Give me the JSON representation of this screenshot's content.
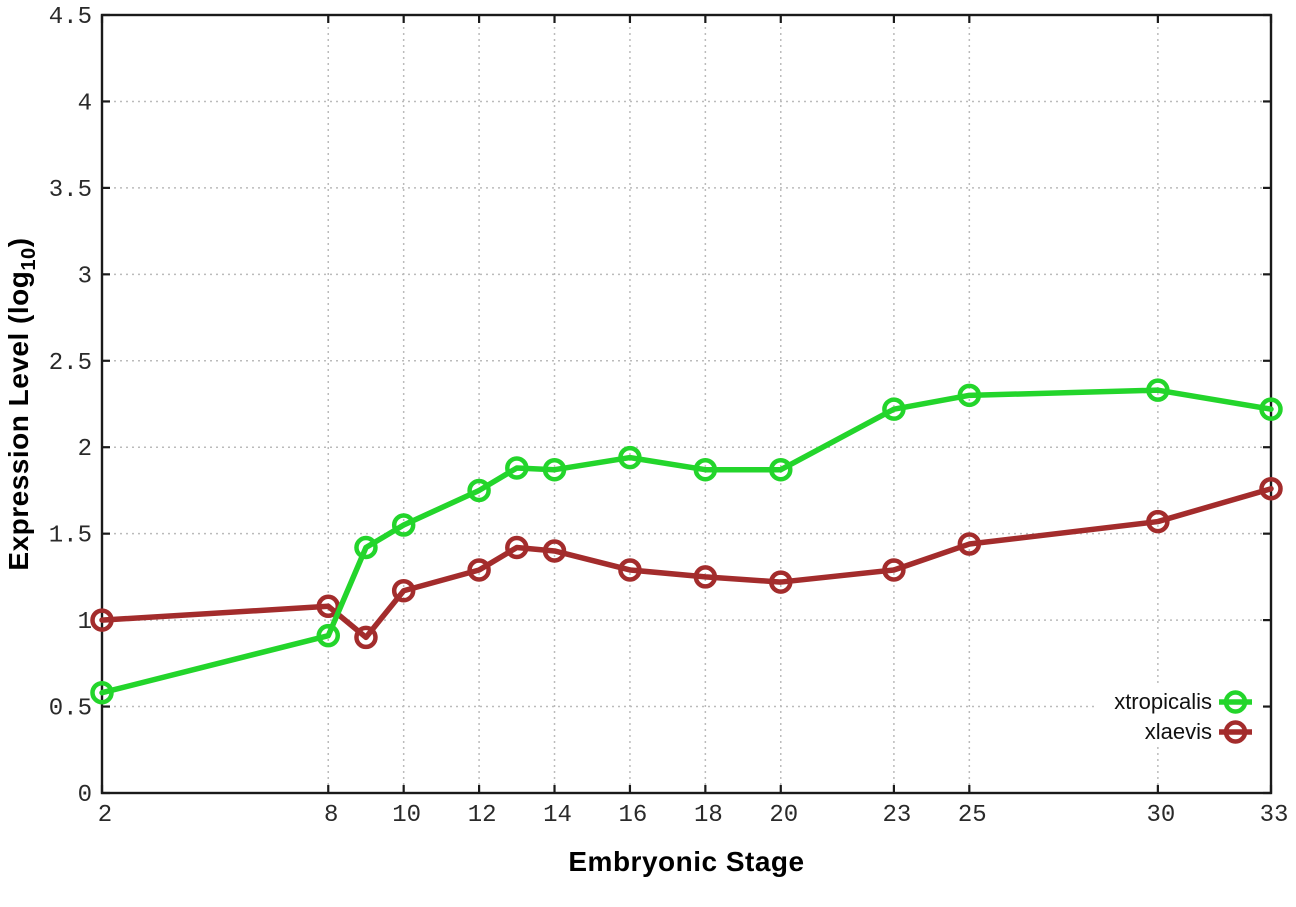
{
  "chart_data": {
    "type": "line",
    "title": "",
    "xlabel": "Embryonic Stage",
    "ylabel": "Expression Level (log10)",
    "ylabel_parts": {
      "prefix": "Expression Level (log",
      "subscript": "10",
      "suffix": ")"
    },
    "xlim": [
      2,
      33
    ],
    "ylim": [
      0,
      4.5
    ],
    "x_ticks": [
      2,
      8,
      10,
      12,
      14,
      16,
      18,
      20,
      23,
      25,
      30,
      33
    ],
    "y_ticks": [
      0,
      0.5,
      1,
      1.5,
      2,
      2.5,
      3,
      3.5,
      4,
      4.5
    ],
    "grid": true,
    "legend_position": "inside-bottom-right",
    "x": [
      2,
      8,
      9,
      10,
      12,
      13,
      14,
      16,
      18,
      20,
      23,
      25,
      30,
      33
    ],
    "series": [
      {
        "name": "xtropicalis",
        "color": "#23d52b",
        "values": [
          0.58,
          0.91,
          1.42,
          1.55,
          1.75,
          1.88,
          1.87,
          1.94,
          1.87,
          1.87,
          2.22,
          2.3,
          2.33,
          2.22
        ]
      },
      {
        "name": "xlaevis",
        "color": "#a32c2c",
        "values": [
          1.0,
          1.08,
          0.9,
          1.17,
          1.29,
          1.42,
          1.4,
          1.29,
          1.25,
          1.22,
          1.29,
          1.44,
          1.57,
          1.76
        ]
      }
    ]
  },
  "style": {
    "frame_color": "#1a1a1a",
    "grid_color": "#bbbbbb",
    "tick_label_color": "#2a2a2a",
    "background": "#ffffff"
  }
}
